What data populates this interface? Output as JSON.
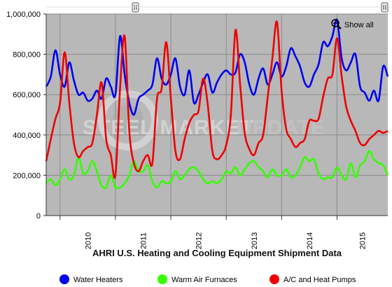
{
  "chart_data": {
    "type": "line",
    "title": "AHRI U.S. Heating and Cooling Equipment Shipment Data",
    "xlabel": "",
    "ylabel": "",
    "ylim": [
      0,
      1000000
    ],
    "yticks": [
      "0",
      "200,000",
      "400,000",
      "600,000",
      "800,000",
      "1,000,000"
    ],
    "ytick_values": [
      0,
      200000,
      400000,
      600000,
      800000,
      1000000
    ],
    "xticks": [
      "2010",
      "2011",
      "2012",
      "2013",
      "2014",
      "2015"
    ],
    "x_start": "2009-10",
    "x_end": "2015-12",
    "grid": true,
    "legend_position": "bottom",
    "x": [
      "2009-10",
      "2009-11",
      "2009-12",
      "2010-01",
      "2010-02",
      "2010-03",
      "2010-04",
      "2010-05",
      "2010-06",
      "2010-07",
      "2010-08",
      "2010-09",
      "2010-10",
      "2010-11",
      "2010-12",
      "2011-01",
      "2011-02",
      "2011-03",
      "2011-04",
      "2011-05",
      "2011-06",
      "2011-07",
      "2011-08",
      "2011-09",
      "2011-10",
      "2011-11",
      "2011-12",
      "2012-01",
      "2012-02",
      "2012-03",
      "2012-04",
      "2012-05",
      "2012-06",
      "2012-07",
      "2012-08",
      "2012-09",
      "2012-10",
      "2012-11",
      "2012-12",
      "2013-01",
      "2013-02",
      "2013-03",
      "2013-04",
      "2013-05",
      "2013-06",
      "2013-07",
      "2013-08",
      "2013-09",
      "2013-10",
      "2013-11",
      "2013-12",
      "2014-01",
      "2014-02",
      "2014-03",
      "2014-04",
      "2014-05",
      "2014-06",
      "2014-07",
      "2014-08",
      "2014-09",
      "2014-10",
      "2014-11",
      "2014-12",
      "2015-01",
      "2015-02",
      "2015-03",
      "2015-04",
      "2015-05",
      "2015-06",
      "2015-07",
      "2015-08",
      "2015-09",
      "2015-10",
      "2015-11",
      "2015-12"
    ],
    "series": [
      {
        "name": "Water Heaters",
        "color": "#0000ee",
        "values": [
          640000,
          690000,
          820000,
          700000,
          640000,
          760000,
          670000,
          600000,
          610000,
          570000,
          580000,
          620000,
          580000,
          680000,
          640000,
          600000,
          890000,
          700000,
          560000,
          500000,
          580000,
          600000,
          620000,
          650000,
          780000,
          680000,
          650000,
          700000,
          780000,
          640000,
          600000,
          720000,
          560000,
          600000,
          660000,
          700000,
          610000,
          660000,
          700000,
          720000,
          700000,
          710000,
          800000,
          760000,
          650000,
          600000,
          680000,
          730000,
          650000,
          700000,
          760000,
          690000,
          740000,
          830000,
          790000,
          740000,
          660000,
          640000,
          700000,
          750000,
          860000,
          840000,
          890000,
          970000,
          780000,
          720000,
          760000,
          800000,
          640000,
          610000,
          570000,
          620000,
          570000,
          740000,
          690000
        ]
      },
      {
        "name": "Warm Air Furnaces",
        "color": "#33ff00",
        "values": [
          160000,
          180000,
          150000,
          180000,
          230000,
          180000,
          200000,
          290000,
          210000,
          220000,
          270000,
          220000,
          150000,
          140000,
          200000,
          140000,
          140000,
          160000,
          200000,
          270000,
          220000,
          220000,
          250000,
          170000,
          140000,
          170000,
          160000,
          170000,
          220000,
          180000,
          200000,
          230000,
          240000,
          220000,
          180000,
          160000,
          170000,
          160000,
          180000,
          220000,
          210000,
          240000,
          200000,
          230000,
          260000,
          270000,
          240000,
          220000,
          190000,
          230000,
          200000,
          200000,
          230000,
          190000,
          200000,
          240000,
          290000,
          270000,
          280000,
          210000,
          180000,
          190000,
          190000,
          240000,
          200000,
          180000,
          260000,
          190000,
          250000,
          270000,
          320000,
          280000,
          260000,
          250000,
          200000
        ]
      },
      {
        "name": "A/C and Heat Pumps",
        "color": "#ee0000",
        "values": [
          270000,
          380000,
          480000,
          560000,
          810000,
          560000,
          360000,
          290000,
          320000,
          340000,
          360000,
          500000,
          660000,
          380000,
          300000,
          200000,
          630000,
          890000,
          420000,
          260000,
          220000,
          270000,
          300000,
          260000,
          580000,
          630000,
          860000,
          580000,
          320000,
          280000,
          380000,
          460000,
          500000,
          520000,
          680000,
          550000,
          320000,
          280000,
          300000,
          350000,
          500000,
          920000,
          650000,
          410000,
          330000,
          300000,
          360000,
          400000,
          590000,
          780000,
          960000,
          620000,
          430000,
          380000,
          340000,
          360000,
          380000,
          470000,
          470000,
          480000,
          590000,
          680000,
          700000,
          880000,
          690000,
          540000,
          470000,
          420000,
          360000,
          350000,
          380000,
          400000,
          420000,
          410000,
          420000
        ]
      }
    ],
    "watermark": "STEEL MARKET UPDATE"
  },
  "ui": {
    "show_all_label": "Show all"
  }
}
